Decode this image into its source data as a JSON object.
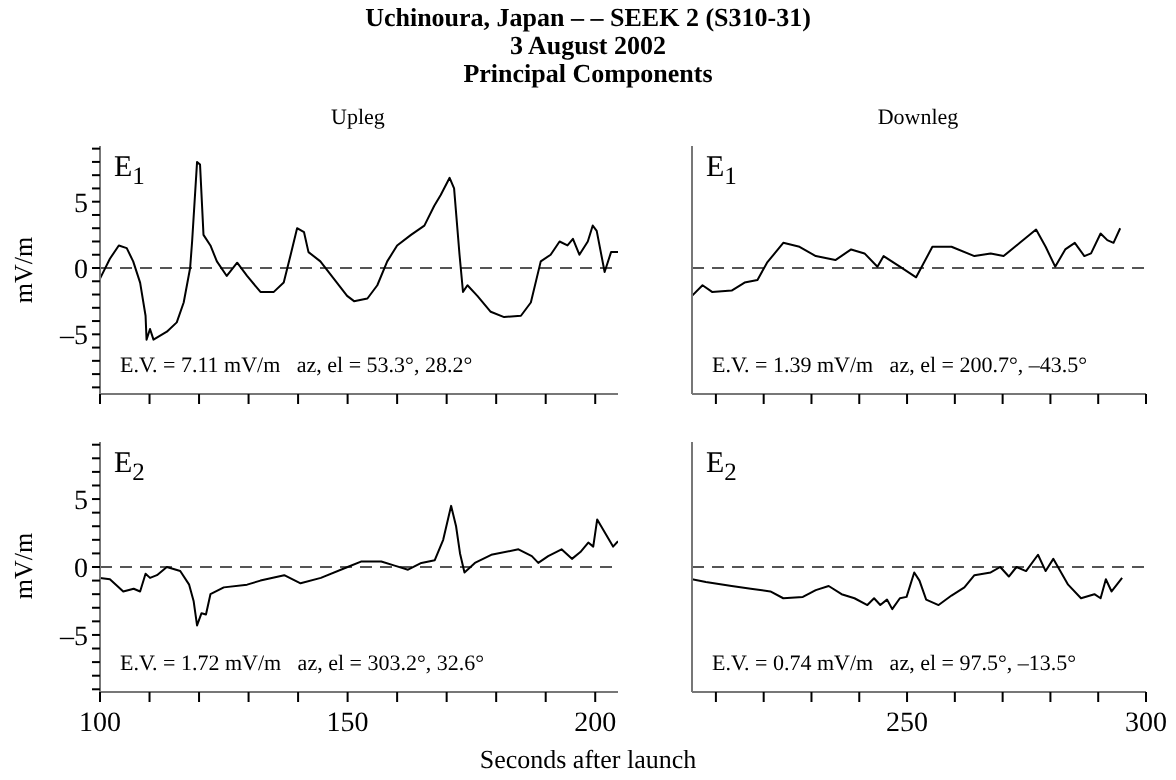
{
  "chart_data": [
    {
      "type": "line",
      "title": "Uchinoura, Japan – – SEEK 2 (S310-31)",
      "subtitle": "3 August 2002",
      "ylabel": "mV/m",
      "annotations": [
        "Principal Components",
        "Upleg",
        "E$_{1}$",
        "E.V. = 7.11 mV/m   az, el = 53.3°, 28.2°"
      ],
      "xlim": [
        100,
        204.6
      ],
      "xticks": [
        {
          "value": 100,
          "label": null
        },
        {
          "value": 110,
          "label": null
        },
        {
          "value": 120,
          "label": null
        },
        {
          "value": 130,
          "label": null
        },
        {
          "value": 140,
          "label": null
        },
        {
          "value": 150,
          "label": null
        },
        {
          "value": 160,
          "label": null
        },
        {
          "value": 170,
          "label": null
        },
        {
          "value": 180,
          "label": null
        },
        {
          "value": 190,
          "label": null
        },
        {
          "value": 200,
          "label": null
        }
      ],
      "ylim": [
        -9.5,
        9.2
      ],
      "yticks": [
        {
          "value": -9,
          "label": null
        },
        {
          "value": -8,
          "label": null
        },
        {
          "value": -7,
          "label": null
        },
        {
          "value": -6,
          "label": null
        },
        {
          "value": -5,
          "label": "–5"
        },
        {
          "value": -4,
          "label": null
        },
        {
          "value": -3,
          "label": null
        },
        {
          "value": -2,
          "label": null
        },
        {
          "value": -1,
          "label": null
        },
        {
          "value": 0,
          "label": "0"
        },
        {
          "value": 1,
          "label": null
        },
        {
          "value": 2,
          "label": null
        },
        {
          "value": 3,
          "label": null
        },
        {
          "value": 4,
          "label": null
        },
        {
          "value": 5,
          "label": "5"
        },
        {
          "value": 6,
          "label": null
        },
        {
          "value": 7,
          "label": null
        },
        {
          "value": 8,
          "label": null
        },
        {
          "value": 9,
          "label": null
        }
      ],
      "tick_labels": "y",
      "ref_lines": [
        {
          "axis": "y",
          "value": 0,
          "color": "#555555",
          "line_style": "dashed"
        }
      ],
      "x": [
        100,
        102,
        103.8,
        105.4,
        106.7,
        108.1,
        109.2,
        109.4,
        110.1,
        110.8,
        113.5,
        115.5,
        116.9,
        118.2,
        118.6,
        119.6,
        120.2,
        120.9,
        122.3,
        123.6,
        125.6,
        127.7,
        129.7,
        132.4,
        135.1,
        137.1,
        138.5,
        139.8,
        141.2,
        142.1,
        144.5,
        147.2,
        149.9,
        151.3,
        154,
        156,
        158,
        160,
        162.8,
        165.5,
        167.5,
        168.8,
        170.6,
        171.5,
        172.6,
        173.3,
        174.2,
        176.2,
        178.9,
        181.6,
        185,
        187,
        189,
        191,
        192.8,
        194.4,
        195.5,
        196.8,
        198.5,
        199.5,
        200.3,
        201.9,
        203.2,
        204.6
      ],
      "series": [
        {
          "color": "#000000",
          "values": [
            -0.8,
            0.7,
            1.7,
            1.5,
            0.5,
            -1.1,
            -3.6,
            -5.4,
            -4.6,
            -5.4,
            -4.8,
            -4.1,
            -2.6,
            0,
            2,
            8,
            7.8,
            2.5,
            1.7,
            0.5,
            -0.6,
            0.4,
            -0.6,
            -1.8,
            -1.8,
            -1.1,
            1,
            3,
            2.7,
            1.2,
            0.5,
            -0.8,
            -2.1,
            -2.5,
            -2.3,
            -1.3,
            0.5,
            1.7,
            2.5,
            3.2,
            4.7,
            5.5,
            6.8,
            6,
            1,
            -1.8,
            -1.3,
            -2.1,
            -3.3,
            -3.7,
            -3.6,
            -2.6,
            0.5,
            1,
            2,
            1.7,
            2.2,
            1,
            2,
            3.2,
            2.8,
            -0.3,
            1.2,
            1.2
          ]
        }
      ]
    },
    {
      "type": "line",
      "annotations": [
        "Downleg",
        "E$_{1}$",
        "E.V. = 1.39 mV/m   az, el = 200.7°, –43.5°"
      ],
      "xlim": [
        205,
        300
      ],
      "xticks": [
        {
          "value": 210,
          "label": null
        },
        {
          "value": 220,
          "label": null
        },
        {
          "value": 230,
          "label": null
        },
        {
          "value": 240,
          "label": null
        },
        {
          "value": 250,
          "label": null
        },
        {
          "value": 260,
          "label": null
        },
        {
          "value": 270,
          "label": null
        },
        {
          "value": 280,
          "label": null
        },
        {
          "value": 290,
          "label": null
        },
        {
          "value": 300,
          "label": null
        }
      ],
      "ylim": [
        -9.5,
        9.2
      ],
      "tick_labels": false,
      "ref_lines": [
        {
          "axis": "y",
          "value": 0,
          "color": "#555555",
          "line_style": "dashed"
        }
      ],
      "x": [
        205,
        207.2,
        209.2,
        213.3,
        216,
        218.7,
        220.7,
        224.1,
        227.5,
        230.9,
        235,
        238.3,
        241.1,
        243.8,
        245.1,
        247.2,
        248.5,
        251.9,
        255.3,
        259.3,
        264.1,
        267.5,
        270.2,
        273.6,
        277,
        279,
        281,
        283.1,
        285.1,
        287.1,
        288.5,
        290.5,
        291.9,
        293.2,
        294.6
      ],
      "series": [
        {
          "color": "#000000",
          "values": [
            -2.1,
            -1.3,
            -1.8,
            -1.7,
            -1.1,
            -0.9,
            0.4,
            1.9,
            1.6,
            0.9,
            0.6,
            1.4,
            1.1,
            0.1,
            0.9,
            0.4,
            0.1,
            -0.7,
            1.6,
            1.6,
            0.9,
            1.1,
            0.9,
            1.9,
            2.9,
            1.6,
            0.1,
            1.4,
            1.9,
            0.9,
            1.1,
            2.6,
            2.1,
            1.9,
            3
          ]
        }
      ]
    },
    {
      "type": "line",
      "ylabel": "mV/m",
      "xlabel": "Seconds after launch",
      "annotations": [
        "E$_{2}$",
        "E.V. = 1.72 mV/m   az, el = 303.2°, 32.6°"
      ],
      "xlim": [
        100,
        204.6
      ],
      "xticks": [
        100,
        {
          "value": 110,
          "label": null
        },
        {
          "value": 120,
          "label": null
        },
        {
          "value": 130,
          "label": null
        },
        {
          "value": 140,
          "label": null
        },
        150,
        {
          "value": 160,
          "label": null
        },
        {
          "value": 170,
          "label": null
        },
        {
          "value": 180,
          "label": null
        },
        {
          "value": 190,
          "label": null
        },
        200
      ],
      "ylim": [
        -9.2,
        9.2
      ],
      "yticks": [
        {
          "value": -9,
          "label": null
        },
        {
          "value": -8,
          "label": null
        },
        {
          "value": -7,
          "label": null
        },
        {
          "value": -6,
          "label": null
        },
        {
          "value": -5,
          "label": "–5"
        },
        {
          "value": -4,
          "label": null
        },
        {
          "value": -3,
          "label": null
        },
        {
          "value": -2,
          "label": null
        },
        {
          "value": -1,
          "label": null
        },
        {
          "value": 0,
          "label": "0"
        },
        {
          "value": 1,
          "label": null
        },
        {
          "value": 2,
          "label": null
        },
        {
          "value": 3,
          "label": null
        },
        {
          "value": 4,
          "label": null
        },
        {
          "value": 5,
          "label": "5"
        },
        {
          "value": 6,
          "label": null
        },
        {
          "value": 7,
          "label": null
        },
        {
          "value": 8,
          "label": null
        },
        {
          "value": 9,
          "label": null
        }
      ],
      "ref_lines": [
        {
          "axis": "y",
          "value": 0,
          "color": "#555555",
          "line_style": "dashed"
        }
      ],
      "x": [
        100,
        102,
        104.7,
        106.8,
        108.1,
        109.2,
        110.1,
        111.5,
        113.5,
        116.2,
        118,
        118.9,
        119.6,
        120.5,
        121.4,
        122.3,
        125,
        129.7,
        132.4,
        137.2,
        140.5,
        144.6,
        150,
        152.7,
        156.8,
        159.5,
        162.2,
        164.9,
        167.6,
        169.3,
        170.9,
        171.9,
        172.7,
        173.6,
        175.7,
        179,
        184.5,
        187.2,
        188.5,
        190.5,
        193.2,
        195.3,
        197,
        198.6,
        199.6,
        200.4,
        202,
        203.6,
        204.6
      ],
      "series": [
        {
          "color": "#000000",
          "values": [
            -0.8,
            -0.9,
            -1.8,
            -1.6,
            -1.8,
            -0.5,
            -0.8,
            -0.6,
            0,
            -0.3,
            -1.3,
            -2.5,
            -4.3,
            -3.4,
            -3.5,
            -2,
            -1.5,
            -1.3,
            -1,
            -0.6,
            -1.2,
            -0.8,
            0,
            0.4,
            0.4,
            0.1,
            -0.2,
            0.3,
            0.5,
            2,
            4.5,
            3,
            1,
            -0.4,
            0.3,
            0.9,
            1.3,
            0.8,
            0.3,
            0.8,
            1.3,
            0.6,
            1.1,
            1.8,
            1.5,
            3.5,
            2.5,
            1.5,
            1.9
          ]
        }
      ]
    },
    {
      "type": "line",
      "annotations": [
        "E$_{2}$",
        "E.V. = 0.74 mV/m   az, el = 97.5°, –13.5°"
      ],
      "xlim": [
        205,
        300
      ],
      "xticks": [
        {
          "value": 210,
          "label": null
        },
        {
          "value": 220,
          "label": null
        },
        {
          "value": 230,
          "label": null
        },
        {
          "value": 240,
          "label": null
        },
        250,
        {
          "value": 260,
          "label": null
        },
        {
          "value": 270,
          "label": null
        },
        {
          "value": 280,
          "label": null
        },
        {
          "value": 290,
          "label": null
        },
        300
      ],
      "ylim": [
        -9.2,
        9.2
      ],
      "tick_labels": "x",
      "ref_lines": [
        {
          "axis": "y",
          "value": 0,
          "color": "#555555",
          "line_style": "dashed"
        }
      ],
      "x": [
        205,
        207.9,
        213.3,
        217.3,
        221.4,
        224.1,
        228.2,
        230.9,
        233.6,
        236.3,
        239,
        241.7,
        243.1,
        244.4,
        245.8,
        246.9,
        248.5,
        249.9,
        251.5,
        252.6,
        254,
        256.6,
        259.3,
        262,
        264.1,
        267.5,
        269.5,
        271.3,
        272.9,
        274.9,
        277.4,
        279,
        280.6,
        283.7,
        286.4,
        289.2,
        290.5,
        291.6,
        292.8,
        295
      ],
      "series": [
        {
          "color": "#000000",
          "values": [
            -0.9,
            -1.1,
            -1.4,
            -1.6,
            -1.8,
            -2.3,
            -2.2,
            -1.7,
            -1.4,
            -2,
            -2.3,
            -2.8,
            -2.3,
            -2.8,
            -2.4,
            -3.1,
            -2.3,
            -2.2,
            -0.4,
            -1,
            -2.4,
            -2.8,
            -2.1,
            -1.5,
            -0.6,
            -0.4,
            0,
            -0.7,
            0,
            -0.3,
            0.9,
            -0.3,
            0.6,
            -1.3,
            -2.3,
            -2,
            -2.3,
            -0.9,
            -1.8,
            -0.8
          ]
        }
      ]
    }
  ]
}
